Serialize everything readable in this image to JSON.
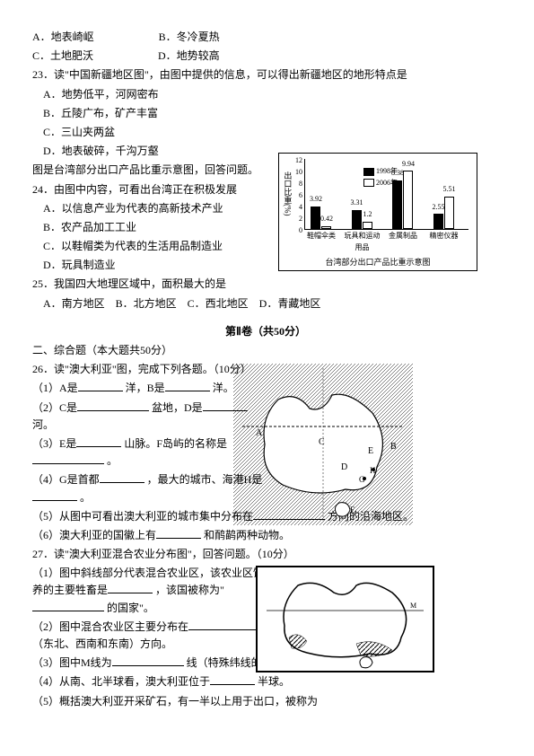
{
  "chart": {
    "ylabel": "出口比重(%)",
    "ymax": 12,
    "ytick_step": 2,
    "legend1": "1998年",
    "legend2": "2006年",
    "categories": [
      "鞋帽伞类",
      "玩具和运动用品",
      "金属制品",
      "精密仪器"
    ],
    "v1998": [
      3.92,
      3.31,
      8.38,
      2.55
    ],
    "v2006": [
      0.42,
      1.2,
      9.94,
      5.51
    ],
    "title": "台湾部分出口产品比重示意图",
    "bar_black": "#000000",
    "bar_white": "#ffffff"
  },
  "text": {
    "line1": "A．地表崎岖　　　　　　B．冬冷夏热",
    "line2": "C．土地肥沃　　　　　　D．地势较高",
    "q23": "23．读\"中国新疆地区图\"，由图中提供的信息，可以得出新疆地区的地形特点是",
    "q23a": "A．地势低平，河网密布",
    "q23b": "B．丘陵广布，矿产丰富",
    "q23c": "C．三山夹两盆",
    "q23d": "D．地表破碎，千沟万壑",
    "q24pre": "图是台湾部分出口产品比重示意图，回答问题。",
    "q24": "24．由图中内容，可看出台湾正在积极发展",
    "q24a": "A．以信息产业为代表的高新技术产业",
    "q24b": "B．农产品加工工业",
    "q24c": "C．以鞋帽类为代表的生活用品制造业",
    "q24d": "D．玩具制造业",
    "q25": "25．我国四大地理区域中，面积最大的是",
    "q25a": "A．南方地区　B．北方地区　C．西北地区　D．青藏地区",
    "sec2": "第Ⅱ卷（共50分）",
    "sec2note": "二、综合题（本大题共50分）",
    "q26": "26．读\"澳大利亚\"图，完成下列各题。（10分）",
    "q26_1a": "（1）A是",
    "q26_1b": "洋，B是",
    "q26_1c": "洋。",
    "q26_2a": "（2）C是",
    "q26_2b": "盆地，D是",
    "q26_2c": "河。",
    "q26_3a": "（3）E是",
    "q26_3b": "山脉。F岛屿的名称是",
    "q26_3c": "。",
    "q26_4a": "（4）G是首都",
    "q26_4b": "，最大的城市、海港H是",
    "q26_4c": "。",
    "q26_5a": "（5）从图中可看出澳大利亚的城市集中分布在",
    "q26_5b": "方向的沿海地区。",
    "q26_6a": "（6）澳大利亚的国徽上有",
    "q26_6b": "和鸸鹋两种动物。",
    "q27": "27．读\"澳大利亚混合农业分布图\"，回答问题。（10分）",
    "q27_1a": "（1）图中斜线部分代表混合农业区，该农业区饲养的主要牲畜是",
    "q27_1b": "，该国被称为\"",
    "q27_1c": "的国家\"。",
    "q27_2a": "（2）图中混合农业区主要分布在",
    "q27_2b": "（东北、西南和东南）方向。",
    "q27_3a": "（3）图中M线为",
    "q27_3b": "线（特殊纬线的名称）。",
    "q27_4a": "（4）从南、北半球看，澳大利亚位于",
    "q27_4b": "半球。",
    "q27_5": "（5）概括澳大利亚开采矿石，有一半以上用于出口，被称为"
  }
}
